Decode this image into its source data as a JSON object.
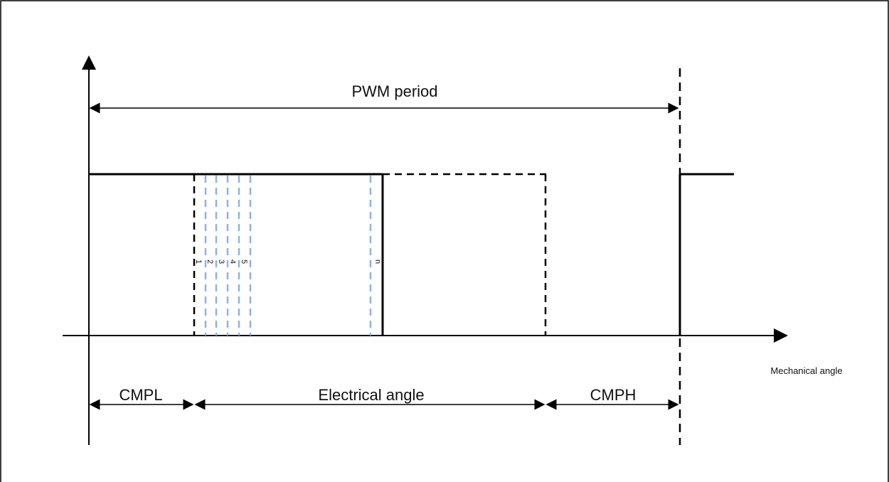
{
  "diagram": {
    "labels": {
      "pwm_period": "PWM period",
      "mechanical_angle": "Mechanical angle",
      "cmpl": "CMPL",
      "electrical_angle": "Electrical angle",
      "cmph": "CMPH"
    },
    "sample_markers": [
      "1",
      "2",
      "3",
      "4",
      "5",
      "n"
    ],
    "colors": {
      "line": "#000000",
      "sample_dashed": "#8fb3e0",
      "border": "#000000"
    }
  }
}
